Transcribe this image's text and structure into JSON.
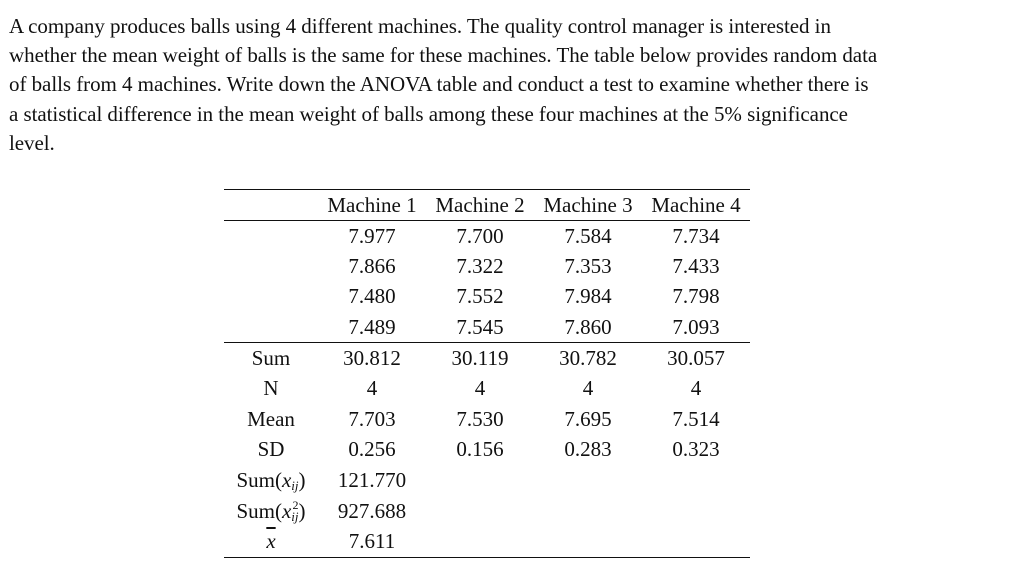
{
  "problem": {
    "lines": [
      "A company produces balls using 4 different machines. The quality control manager is interested in",
      "whether the mean weight of balls is the same for these machines. The table below provides random data",
      "of balls from 4 machines. Write down the ANOVA table and conduct a test to examine whether there is",
      "a statistical difference in the mean weight of balls among these four machines at the 5% significance",
      "level."
    ]
  },
  "table": {
    "headers": [
      "",
      "Machine 1",
      "Machine 2",
      "Machine 3",
      "Machine 4"
    ],
    "observations": [
      [
        "7.977",
        "7.700",
        "7.584",
        "7.734"
      ],
      [
        "7.866",
        "7.322",
        "7.353",
        "7.433"
      ],
      [
        "7.480",
        "7.552",
        "7.984",
        "7.798"
      ],
      [
        "7.489",
        "7.545",
        "7.860",
        "7.093"
      ]
    ],
    "summary": {
      "sum": {
        "label": "Sum",
        "values": [
          "30.812",
          "30.119",
          "30.782",
          "30.057"
        ]
      },
      "n": {
        "label": "N",
        "values": [
          "4",
          "4",
          "4",
          "4"
        ]
      },
      "mean": {
        "label": "Mean",
        "values": [
          "7.703",
          "7.530",
          "7.695",
          "7.514"
        ]
      },
      "sd": {
        "label": "SD",
        "values": [
          "0.256",
          "0.156",
          "0.283",
          "0.323"
        ]
      },
      "sum_xij": {
        "label_prefix": "Sum(",
        "label_var": "x",
        "label_sub": "ij",
        "label_suffix": ")",
        "value": "121.770"
      },
      "sum_xij2": {
        "label_prefix": "Sum(",
        "label_var": "x",
        "label_sub": "ij",
        "label_sup": "2",
        "label_suffix": ")",
        "value": "927.688"
      },
      "grand_mean": {
        "label": "x",
        "value": "7.611"
      }
    }
  }
}
